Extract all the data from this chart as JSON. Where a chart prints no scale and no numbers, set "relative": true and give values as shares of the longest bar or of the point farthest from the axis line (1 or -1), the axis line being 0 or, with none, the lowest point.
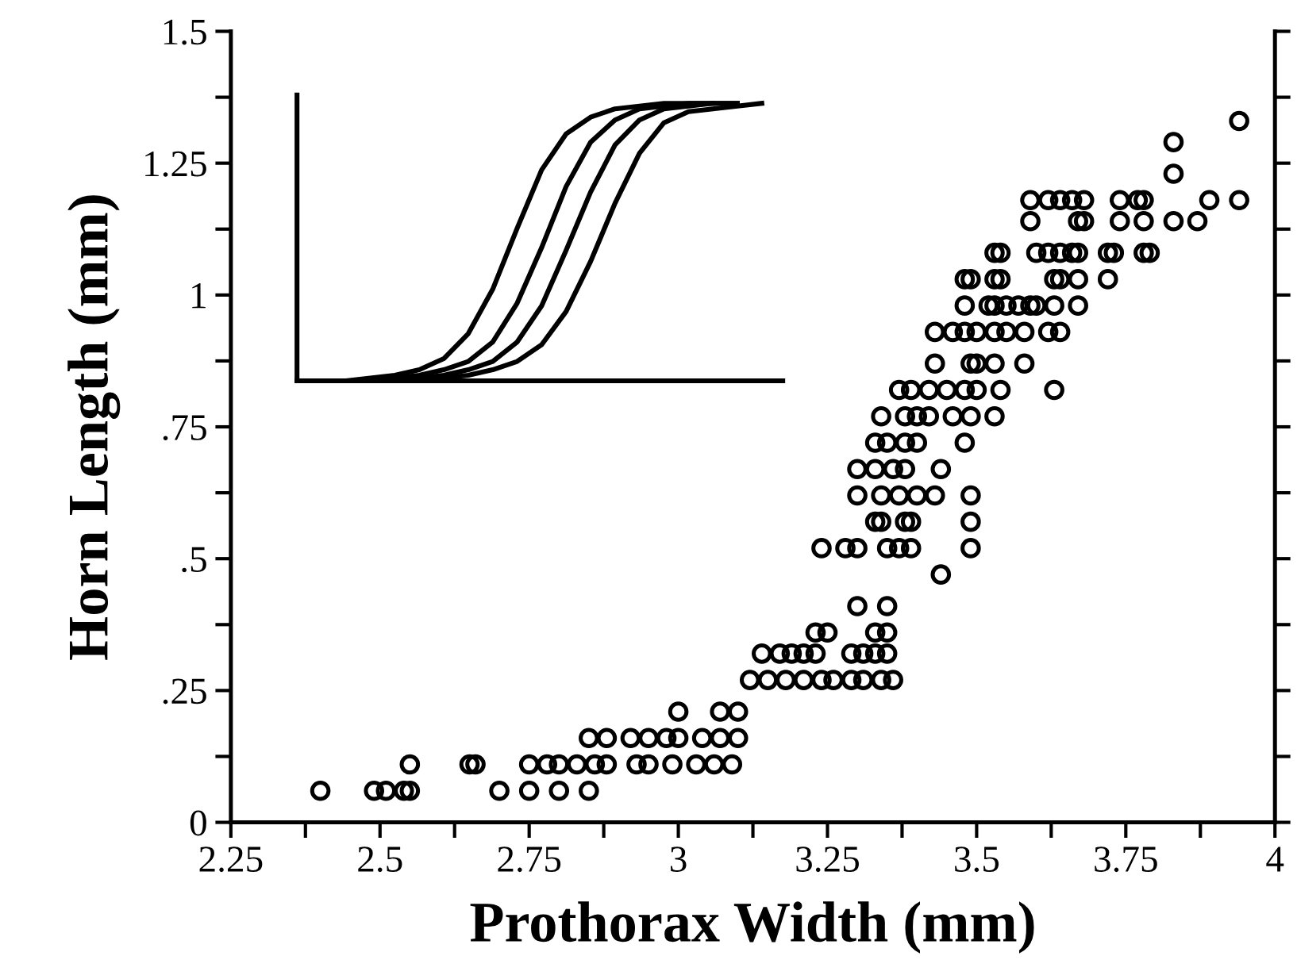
{
  "chart_data": [
    {
      "type": "scatter",
      "xlabel": "Prothorax Width (mm)",
      "ylabel": "Horn Length (mm)",
      "xlim": [
        2.25,
        4
      ],
      "ylim": [
        0,
        1.5
      ],
      "xticks": [
        {
          "value": 2.25,
          "label": "2.25"
        },
        {
          "value": 2.375,
          "label": null
        },
        {
          "value": 2.5,
          "label": "2.5"
        },
        {
          "value": 2.625,
          "label": null
        },
        {
          "value": 2.75,
          "label": "2.75"
        },
        {
          "value": 2.875,
          "label": null
        },
        3,
        {
          "value": 3.125,
          "label": null
        },
        {
          "value": 3.25,
          "label": "3.25"
        },
        {
          "value": 3.375,
          "label": null
        },
        {
          "value": 3.5,
          "label": "3.5"
        },
        {
          "value": 3.625,
          "label": null
        },
        {
          "value": 3.75,
          "label": "3.75"
        },
        {
          "value": 3.875,
          "label": null
        },
        4
      ],
      "yticks": [
        0,
        {
          "value": 0.125,
          "label": null
        },
        {
          "value": 0.25,
          "label": ".25"
        },
        {
          "value": 0.375,
          "label": null
        },
        {
          "value": 0.5,
          "label": ".5"
        },
        {
          "value": 0.625,
          "label": null
        },
        {
          "value": 0.75,
          "label": ".75"
        },
        {
          "value": 0.875,
          "label": null
        },
        1,
        {
          "value": 1.125,
          "label": null
        },
        {
          "value": 1.25,
          "label": "1.25"
        },
        {
          "value": 1.375,
          "label": null
        },
        {
          "value": 1.5,
          "label": "1.5"
        }
      ],
      "marker": "circle",
      "grid": false,
      "series": [
        {
          "color": "#000000",
          "x": [
            2.4,
            2.49,
            2.51,
            2.54,
            2.55,
            2.7,
            2.75,
            2.8,
            2.85,
            2.55,
            2.65,
            2.66,
            2.75,
            2.78,
            2.8,
            2.83,
            2.86,
            2.88,
            2.93,
            2.95,
            2.99,
            3.03,
            3.06,
            3.09,
            2.85,
            2.88,
            2.92,
            2.95,
            2.98,
            3.0,
            3.04,
            3.07,
            3.1,
            3.0,
            3.07,
            3.1,
            3.12,
            3.15,
            3.18,
            3.21,
            3.24,
            3.26,
            3.29,
            3.31,
            3.34,
            3.36,
            3.14,
            3.17,
            3.19,
            3.21,
            3.23,
            3.29,
            3.31,
            3.33,
            3.35,
            3.23,
            3.25,
            3.33,
            3.35,
            3.3,
            3.35,
            3.44,
            3.24,
            3.28,
            3.3,
            3.35,
            3.37,
            3.39,
            3.49,
            3.33,
            3.34,
            3.38,
            3.39,
            3.49,
            3.3,
            3.34,
            3.37,
            3.4,
            3.43,
            3.49,
            3.3,
            3.33,
            3.36,
            3.38,
            3.44,
            3.33,
            3.35,
            3.38,
            3.4,
            3.48,
            3.34,
            3.38,
            3.4,
            3.42,
            3.46,
            3.49,
            3.53,
            3.37,
            3.39,
            3.42,
            3.45,
            3.48,
            3.5,
            3.54,
            3.63,
            3.43,
            3.49,
            3.5,
            3.53,
            3.58,
            3.43,
            3.46,
            3.48,
            3.5,
            3.53,
            3.55,
            3.58,
            3.62,
            3.64,
            3.48,
            3.52,
            3.53,
            3.55,
            3.57,
            3.59,
            3.6,
            3.63,
            3.67,
            3.48,
            3.49,
            3.53,
            3.54,
            3.63,
            3.64,
            3.67,
            3.72,
            3.53,
            3.54,
            3.6,
            3.62,
            3.64,
            3.66,
            3.67,
            3.72,
            3.73,
            3.78,
            3.79,
            3.59,
            3.67,
            3.68,
            3.74,
            3.78,
            3.83,
            3.87,
            3.59,
            3.62,
            3.64,
            3.66,
            3.68,
            3.74,
            3.77,
            3.78,
            3.89,
            3.94,
            3.83,
            3.83,
            3.94
          ],
          "values": [
            0.06,
            0.06,
            0.06,
            0.06,
            0.06,
            0.06,
            0.06,
            0.06,
            0.06,
            0.11,
            0.11,
            0.11,
            0.11,
            0.11,
            0.11,
            0.11,
            0.11,
            0.11,
            0.11,
            0.11,
            0.11,
            0.11,
            0.11,
            0.11,
            0.16,
            0.16,
            0.16,
            0.16,
            0.16,
            0.16,
            0.16,
            0.16,
            0.16,
            0.21,
            0.21,
            0.21,
            0.27,
            0.27,
            0.27,
            0.27,
            0.27,
            0.27,
            0.27,
            0.27,
            0.27,
            0.27,
            0.32,
            0.32,
            0.32,
            0.32,
            0.32,
            0.32,
            0.32,
            0.32,
            0.32,
            0.36,
            0.36,
            0.36,
            0.36,
            0.41,
            0.41,
            0.47,
            0.52,
            0.52,
            0.52,
            0.52,
            0.52,
            0.52,
            0.52,
            0.57,
            0.57,
            0.57,
            0.57,
            0.57,
            0.62,
            0.62,
            0.62,
            0.62,
            0.62,
            0.62,
            0.67,
            0.67,
            0.67,
            0.67,
            0.67,
            0.72,
            0.72,
            0.72,
            0.72,
            0.72,
            0.77,
            0.77,
            0.77,
            0.77,
            0.77,
            0.77,
            0.77,
            0.82,
            0.82,
            0.82,
            0.82,
            0.82,
            0.82,
            0.82,
            0.82,
            0.87,
            0.87,
            0.87,
            0.87,
            0.87,
            0.93,
            0.93,
            0.93,
            0.93,
            0.93,
            0.93,
            0.93,
            0.93,
            0.93,
            0.98,
            0.98,
            0.98,
            0.98,
            0.98,
            0.98,
            0.98,
            0.98,
            0.98,
            1.03,
            1.03,
            1.03,
            1.03,
            1.03,
            1.03,
            1.03,
            1.03,
            1.08,
            1.08,
            1.08,
            1.08,
            1.08,
            1.08,
            1.08,
            1.08,
            1.08,
            1.08,
            1.08,
            1.14,
            1.14,
            1.14,
            1.14,
            1.14,
            1.14,
            1.14,
            1.18,
            1.18,
            1.18,
            1.18,
            1.18,
            1.18,
            1.18,
            1.18,
            1.18,
            1.18,
            1.23,
            1.29,
            1.33
          ]
        }
      ]
    },
    {
      "type": "line",
      "relative": true,
      "marker": "none",
      "line_style": "solid",
      "categories": [
        null,
        null,
        null,
        null,
        null,
        null,
        null,
        null,
        null,
        null,
        null,
        null,
        null,
        null,
        null,
        null,
        null,
        null,
        null,
        null
      ],
      "series": [
        {
          "color": "#000000",
          "values": [
            0,
            0,
            0,
            0.01,
            0.02,
            0.04,
            0.08,
            0.17,
            0.33,
            0.55,
            0.76,
            0.89,
            0.95,
            0.98,
            0.99,
            1,
            1,
            1,
            null,
            null
          ]
        },
        {
          "color": "#000000",
          "values": [
            null,
            0,
            0,
            0,
            0.01,
            0.02,
            0.04,
            0.07,
            0.14,
            0.28,
            0.48,
            0.7,
            0.86,
            0.94,
            0.98,
            0.99,
            1,
            1,
            1,
            null
          ]
        },
        {
          "color": "#000000",
          "values": [
            null,
            null,
            0,
            0,
            0,
            0.01,
            0.02,
            0.04,
            0.07,
            0.14,
            0.27,
            0.47,
            0.68,
            0.85,
            0.94,
            0.98,
            0.99,
            1,
            1,
            null
          ]
        },
        {
          "color": "#000000",
          "values": [
            null,
            null,
            null,
            0,
            0,
            0,
            0.01,
            0.02,
            0.04,
            0.07,
            0.13,
            0.25,
            0.43,
            0.64,
            0.82,
            0.93,
            0.97,
            0.98,
            0.99,
            1
          ]
        }
      ]
    }
  ]
}
